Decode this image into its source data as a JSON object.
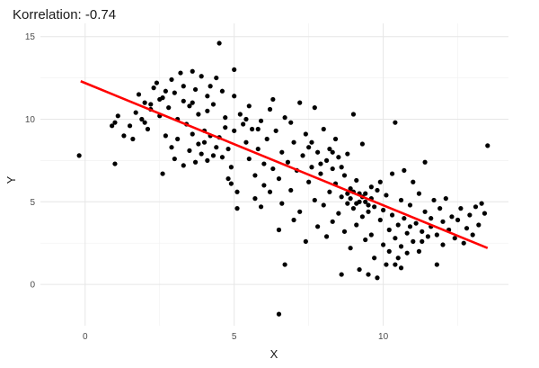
{
  "chart_data": {
    "type": "scatter",
    "title": "Korrelation:  -0.74",
    "xlabel": "X",
    "ylabel": "Y",
    "xlim": [
      -1.5,
      14.2
    ],
    "ylim": [
      -2.5,
      15.8
    ],
    "x_ticks": [
      0,
      5,
      10
    ],
    "y_ticks": [
      0,
      5,
      10,
      15
    ],
    "x_minor": [
      2.5,
      7.5,
      12.5
    ],
    "y_minor": [
      2.5,
      7.5,
      12.5
    ],
    "grid": true,
    "legend": "none",
    "point_color": "#000000",
    "line_color": "#ff0000",
    "regression_line": {
      "x": [
        -0.15,
        13.5
      ],
      "y": [
        12.3,
        2.2
      ]
    },
    "points": [
      {
        "x": -0.2,
        "y": 7.8
      },
      {
        "x": 0.9,
        "y": 9.6
      },
      {
        "x": 1.0,
        "y": 9.8
      },
      {
        "x": 1.1,
        "y": 10.2
      },
      {
        "x": 1.0,
        "y": 7.3
      },
      {
        "x": 1.3,
        "y": 9.0
      },
      {
        "x": 1.5,
        "y": 9.6
      },
      {
        "x": 1.6,
        "y": 8.8
      },
      {
        "x": 1.7,
        "y": 10.4
      },
      {
        "x": 1.8,
        "y": 11.5
      },
      {
        "x": 1.9,
        "y": 10.0
      },
      {
        "x": 2.0,
        "y": 11.0
      },
      {
        "x": 2.1,
        "y": 9.4
      },
      {
        "x": 2.2,
        "y": 10.6
      },
      {
        "x": 2.3,
        "y": 11.9
      },
      {
        "x": 2.4,
        "y": 12.2
      },
      {
        "x": 2.5,
        "y": 10.2
      },
      {
        "x": 2.6,
        "y": 11.3
      },
      {
        "x": 2.7,
        "y": 9.0
      },
      {
        "x": 2.8,
        "y": 10.7
      },
      {
        "x": 2.9,
        "y": 12.4
      },
      {
        "x": 3.0,
        "y": 11.6
      },
      {
        "x": 3.1,
        "y": 10.0
      },
      {
        "x": 3.2,
        "y": 12.8
      },
      {
        "x": 3.3,
        "y": 11.1
      },
      {
        "x": 3.4,
        "y": 9.7
      },
      {
        "x": 3.5,
        "y": 10.8
      },
      {
        "x": 3.6,
        "y": 12.9
      },
      {
        "x": 3.7,
        "y": 11.8
      },
      {
        "x": 3.8,
        "y": 10.3
      },
      {
        "x": 3.9,
        "y": 12.6
      },
      {
        "x": 4.0,
        "y": 9.3
      },
      {
        "x": 4.1,
        "y": 11.4
      },
      {
        "x": 4.2,
        "y": 12.0
      },
      {
        "x": 4.3,
        "y": 10.9
      },
      {
        "x": 4.4,
        "y": 12.5
      },
      {
        "x": 4.5,
        "y": 14.6
      },
      {
        "x": 4.6,
        "y": 11.7
      },
      {
        "x": 4.7,
        "y": 10.1
      },
      {
        "x": 2.6,
        "y": 6.7
      },
      {
        "x": 2.9,
        "y": 8.3
      },
      {
        "x": 3.0,
        "y": 7.6
      },
      {
        "x": 3.1,
        "y": 8.8
      },
      {
        "x": 3.3,
        "y": 7.2
      },
      {
        "x": 3.5,
        "y": 8.1
      },
      {
        "x": 3.6,
        "y": 9.1
      },
      {
        "x": 3.7,
        "y": 7.4
      },
      {
        "x": 3.8,
        "y": 8.5
      },
      {
        "x": 3.9,
        "y": 7.9
      },
      {
        "x": 4.0,
        "y": 8.6
      },
      {
        "x": 4.1,
        "y": 7.5
      },
      {
        "x": 4.2,
        "y": 9.0
      },
      {
        "x": 4.3,
        "y": 7.8
      },
      {
        "x": 4.4,
        "y": 8.3
      },
      {
        "x": 4.5,
        "y": 8.9
      },
      {
        "x": 4.6,
        "y": 7.7
      },
      {
        "x": 4.7,
        "y": 9.5
      },
      {
        "x": 4.8,
        "y": 8.2
      },
      {
        "x": 4.9,
        "y": 7.1
      },
      {
        "x": 5.0,
        "y": 9.3
      },
      {
        "x": 4.8,
        "y": 6.4
      },
      {
        "x": 4.9,
        "y": 6.1
      },
      {
        "x": 5.0,
        "y": 11.4
      },
      {
        "x": 5.0,
        "y": 13.0
      },
      {
        "x": 5.1,
        "y": 5.6
      },
      {
        "x": 5.1,
        "y": 4.6
      },
      {
        "x": 5.2,
        "y": 10.3
      },
      {
        "x": 5.3,
        "y": 9.7
      },
      {
        "x": 5.4,
        "y": 8.6
      },
      {
        "x": 5.5,
        "y": 10.8
      },
      {
        "x": 5.5,
        "y": 7.6
      },
      {
        "x": 5.6,
        "y": 9.4
      },
      {
        "x": 5.7,
        "y": 6.6
      },
      {
        "x": 5.7,
        "y": 5.2
      },
      {
        "x": 5.8,
        "y": 8.2
      },
      {
        "x": 5.9,
        "y": 9.9
      },
      {
        "x": 5.9,
        "y": 4.7
      },
      {
        "x": 6.0,
        "y": 7.3
      },
      {
        "x": 6.0,
        "y": 6.0
      },
      {
        "x": 6.1,
        "y": 8.8
      },
      {
        "x": 6.2,
        "y": 10.6
      },
      {
        "x": 6.2,
        "y": 5.6
      },
      {
        "x": 6.3,
        "y": 11.2
      },
      {
        "x": 6.3,
        "y": 7.0
      },
      {
        "x": 6.4,
        "y": 9.3
      },
      {
        "x": 6.5,
        "y": 6.4
      },
      {
        "x": 6.5,
        "y": 3.3
      },
      {
        "x": 6.6,
        "y": 8.0
      },
      {
        "x": 6.6,
        "y": 4.9
      },
      {
        "x": 6.7,
        "y": 10.1
      },
      {
        "x": 6.7,
        "y": 1.2
      },
      {
        "x": 6.5,
        "y": -1.8
      },
      {
        "x": 6.8,
        "y": 7.4
      },
      {
        "x": 6.9,
        "y": 9.8
      },
      {
        "x": 6.9,
        "y": 5.7
      },
      {
        "x": 7.0,
        "y": 8.6
      },
      {
        "x": 7.0,
        "y": 3.9
      },
      {
        "x": 7.1,
        "y": 6.9
      },
      {
        "x": 7.2,
        "y": 11.0
      },
      {
        "x": 7.2,
        "y": 4.4
      },
      {
        "x": 7.3,
        "y": 7.8
      },
      {
        "x": 7.4,
        "y": 9.1
      },
      {
        "x": 7.4,
        "y": 2.6
      },
      {
        "x": 7.5,
        "y": 6.2
      },
      {
        "x": 7.5,
        "y": 8.3
      },
      {
        "x": 7.6,
        "y": 7.1
      },
      {
        "x": 7.7,
        "y": 10.7
      },
      {
        "x": 7.7,
        "y": 5.1
      },
      {
        "x": 7.8,
        "y": 8.0
      },
      {
        "x": 7.8,
        "y": 3.5
      },
      {
        "x": 7.9,
        "y": 6.7
      },
      {
        "x": 8.0,
        "y": 9.4
      },
      {
        "x": 8.0,
        "y": 4.8
      },
      {
        "x": 8.1,
        "y": 7.5
      },
      {
        "x": 8.1,
        "y": 2.9
      },
      {
        "x": 8.2,
        "y": 8.2
      },
      {
        "x": 8.2,
        "y": 5.6
      },
      {
        "x": 8.3,
        "y": 7.0
      },
      {
        "x": 8.3,
        "y": 3.8
      },
      {
        "x": 8.4,
        "y": 6.1
      },
      {
        "x": 8.4,
        "y": 8.8
      },
      {
        "x": 8.5,
        "y": 4.3
      },
      {
        "x": 8.5,
        "y": 7.7
      },
      {
        "x": 8.6,
        "y": 5.3
      },
      {
        "x": 8.6,
        "y": 0.6
      },
      {
        "x": 8.7,
        "y": 6.6
      },
      {
        "x": 8.7,
        "y": 3.2
      },
      {
        "x": 8.8,
        "y": 4.9
      },
      {
        "x": 8.8,
        "y": 7.9
      },
      {
        "x": 8.9,
        "y": 5.8
      },
      {
        "x": 8.9,
        "y": 2.2
      },
      {
        "x": 9.0,
        "y": 4.6
      },
      {
        "x": 9.0,
        "y": 10.3
      },
      {
        "x": 9.1,
        "y": 6.3
      },
      {
        "x": 9.1,
        "y": 3.6
      },
      {
        "x": 9.2,
        "y": 5.0
      },
      {
        "x": 9.2,
        "y": 0.9
      },
      {
        "x": 9.3,
        "y": 4.1
      },
      {
        "x": 9.3,
        "y": 8.5
      },
      {
        "x": 9.4,
        "y": 5.5
      },
      {
        "x": 9.4,
        "y": 2.7
      },
      {
        "x": 9.5,
        "y": 4.4
      },
      {
        "x": 9.5,
        "y": 0.6
      },
      {
        "x": 9.6,
        "y": 5.9
      },
      {
        "x": 9.6,
        "y": 3.0
      },
      {
        "x": 9.7,
        "y": 4.7
      },
      {
        "x": 9.7,
        "y": 1.6
      },
      {
        "x": 9.8,
        "y": 5.7
      },
      {
        "x": 9.8,
        "y": 0.4
      },
      {
        "x": 9.9,
        "y": 3.9
      },
      {
        "x": 9.9,
        "y": 6.2
      },
      {
        "x": 10.0,
        "y": 2.4
      },
      {
        "x": 10.0,
        "y": 4.5
      },
      {
        "x": 10.1,
        "y": 1.2
      },
      {
        "x": 10.1,
        "y": 5.4
      },
      {
        "x": 10.2,
        "y": 3.3
      },
      {
        "x": 10.2,
        "y": 2.0
      },
      {
        "x": 10.3,
        "y": 4.2
      },
      {
        "x": 10.3,
        "y": 6.7
      },
      {
        "x": 10.4,
        "y": 2.8
      },
      {
        "x": 10.4,
        "y": 9.8
      },
      {
        "x": 10.5,
        "y": 3.6
      },
      {
        "x": 10.5,
        "y": 1.6
      },
      {
        "x": 10.6,
        "y": 5.1
      },
      {
        "x": 10.6,
        "y": 2.3
      },
      {
        "x": 10.7,
        "y": 4.0
      },
      {
        "x": 10.7,
        "y": 6.9
      },
      {
        "x": 10.8,
        "y": 3.1
      },
      {
        "x": 10.8,
        "y": 1.9
      },
      {
        "x": 10.9,
        "y": 4.8
      },
      {
        "x": 11.0,
        "y": 2.6
      },
      {
        "x": 11.0,
        "y": 6.2
      },
      {
        "x": 11.1,
        "y": 3.7
      },
      {
        "x": 11.2,
        "y": 2.0
      },
      {
        "x": 11.2,
        "y": 5.5
      },
      {
        "x": 11.3,
        "y": 3.2
      },
      {
        "x": 11.4,
        "y": 4.4
      },
      {
        "x": 11.4,
        "y": 7.4
      },
      {
        "x": 11.5,
        "y": 2.9
      },
      {
        "x": 11.6,
        "y": 4.0
      },
      {
        "x": 11.6,
        "y": 3.5
      },
      {
        "x": 11.7,
        "y": 5.1
      },
      {
        "x": 11.8,
        "y": 1.2
      },
      {
        "x": 11.8,
        "y": 3.0
      },
      {
        "x": 11.9,
        "y": 4.6
      },
      {
        "x": 12.0,
        "y": 3.8
      },
      {
        "x": 12.0,
        "y": 2.4
      },
      {
        "x": 12.1,
        "y": 5.2
      },
      {
        "x": 12.2,
        "y": 3.3
      },
      {
        "x": 12.3,
        "y": 4.1
      },
      {
        "x": 12.4,
        "y": 2.8
      },
      {
        "x": 12.5,
        "y": 3.9
      },
      {
        "x": 12.6,
        "y": 4.6
      },
      {
        "x": 12.8,
        "y": 3.4
      },
      {
        "x": 12.9,
        "y": 4.2
      },
      {
        "x": 13.0,
        "y": 3.0
      },
      {
        "x": 13.1,
        "y": 4.7
      },
      {
        "x": 13.2,
        "y": 3.6
      },
      {
        "x": 13.3,
        "y": 4.9
      },
      {
        "x": 13.4,
        "y": 4.3
      },
      {
        "x": 13.5,
        "y": 8.4
      },
      {
        "x": 8.9,
        "y": 5.2
      },
      {
        "x": 9.1,
        "y": 4.9
      },
      {
        "x": 9.3,
        "y": 5.3
      },
      {
        "x": 9.5,
        "y": 4.8
      },
      {
        "x": 9.0,
        "y": 5.6
      },
      {
        "x": 8.8,
        "y": 5.5
      },
      {
        "x": 9.2,
        "y": 5.5
      },
      {
        "x": 9.4,
        "y": 5.0
      },
      {
        "x": 9.6,
        "y": 5.2
      },
      {
        "x": 2.2,
        "y": 10.9
      },
      {
        "x": 2.5,
        "y": 11.2
      },
      {
        "x": 2.7,
        "y": 11.7
      },
      {
        "x": 3.3,
        "y": 12.0
      },
      {
        "x": 3.6,
        "y": 11.0
      },
      {
        "x": 2.0,
        "y": 9.8
      },
      {
        "x": 4.1,
        "y": 10.5
      },
      {
        "x": 5.4,
        "y": 10.0
      },
      {
        "x": 5.8,
        "y": 9.4
      },
      {
        "x": 7.6,
        "y": 8.6
      },
      {
        "x": 8.3,
        "y": 8.0
      },
      {
        "x": 7.9,
        "y": 7.3
      },
      {
        "x": 8.6,
        "y": 7.1
      },
      {
        "x": 10.9,
        "y": 3.5
      },
      {
        "x": 11.3,
        "y": 2.6
      },
      {
        "x": 10.4,
        "y": 1.2
      },
      {
        "x": 10.6,
        "y": 1.0
      },
      {
        "x": 12.7,
        "y": 2.5
      }
    ]
  }
}
